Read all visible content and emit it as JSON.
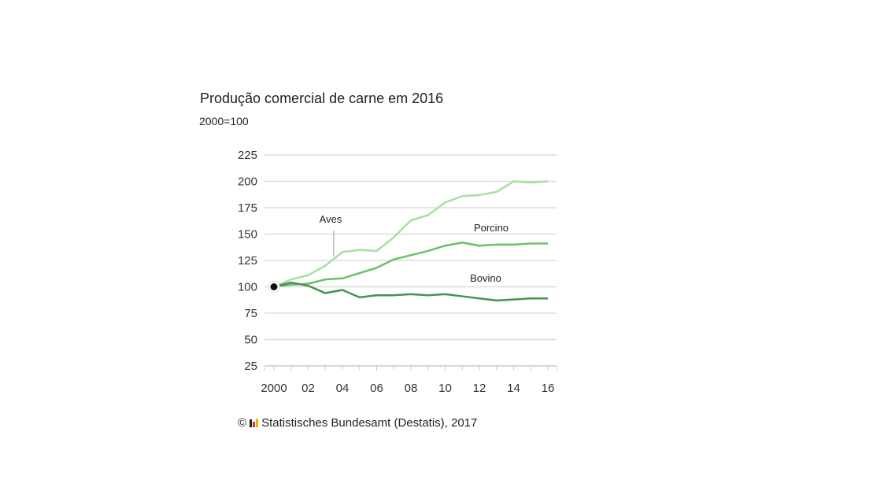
{
  "chart_data": {
    "type": "line",
    "title": "Produção comercial de carne em 2016",
    "subtitle": "2000=100",
    "x": [
      2000,
      2001,
      2002,
      2003,
      2004,
      2005,
      2006,
      2007,
      2008,
      2009,
      2010,
      2011,
      2012,
      2013,
      2014,
      2015,
      2016
    ],
    "xticks": [
      {
        "v": 2000,
        "label": "2000"
      },
      {
        "v": 2002,
        "label": "02"
      },
      {
        "v": 2004,
        "label": "04"
      },
      {
        "v": 2006,
        "label": "06"
      },
      {
        "v": 2008,
        "label": "08"
      },
      {
        "v": 2010,
        "label": "10"
      },
      {
        "v": 2012,
        "label": "12"
      },
      {
        "v": 2014,
        "label": "14"
      },
      {
        "v": 2016,
        "label": "16"
      }
    ],
    "yticks": [
      25,
      50,
      75,
      100,
      125,
      150,
      175,
      200,
      225
    ],
    "ylim": [
      25,
      225
    ],
    "grid": true,
    "series": [
      {
        "name": "Aves",
        "color": "#a6e0a0",
        "values": [
          100,
          107,
          111,
          120,
          133,
          135,
          134,
          147,
          163,
          168,
          180,
          186,
          187,
          190,
          200,
          199,
          200
        ]
      },
      {
        "name": "Porcino",
        "color": "#6cbf6a",
        "values": [
          100,
          102,
          103,
          107,
          108,
          113,
          118,
          126,
          130,
          134,
          139,
          142,
          139,
          140,
          140,
          141,
          141
        ]
      },
      {
        "name": "Bovino",
        "color": "#4a9150",
        "values": [
          100,
          104,
          101,
          94,
          97,
          90,
          92,
          92,
          93,
          92,
          93,
          91,
          89,
          87,
          88,
          89,
          89
        ]
      }
    ]
  },
  "source": {
    "copyright": "©",
    "text": "Statistisches Bundesamt (Destatis), 2017"
  }
}
